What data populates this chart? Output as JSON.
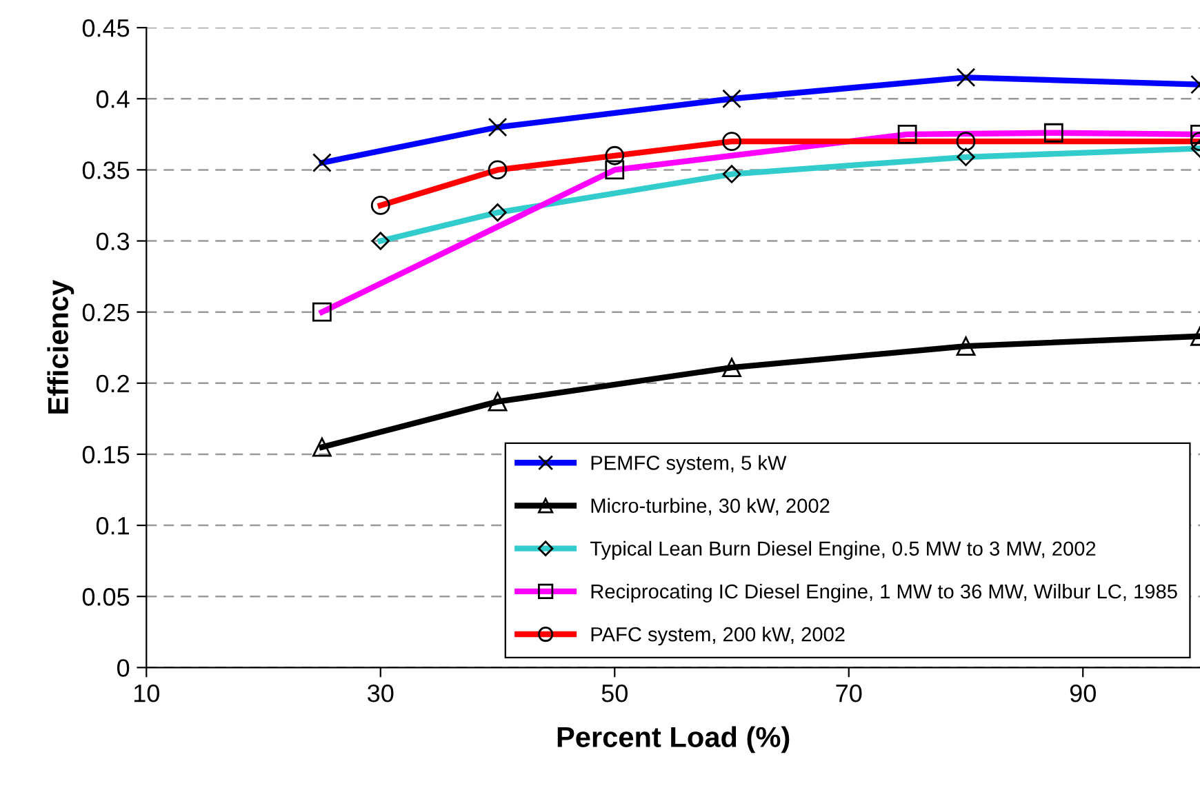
{
  "chart_data": {
    "type": "line",
    "xlabel": "Percent Load (%)",
    "ylabel": "Efficiency",
    "xlim": [
      10,
      100
    ],
    "xticks": [
      10,
      30,
      50,
      70,
      90
    ],
    "ylim": [
      0,
      0.45
    ],
    "yticks": [
      0,
      0.05,
      0.1,
      0.15,
      0.2,
      0.25,
      0.3,
      0.35,
      0.4,
      0.45
    ],
    "grid": "y",
    "legend": "bottom right",
    "series": [
      {
        "name": "PEMFC system, 5 kW",
        "color": "#0000ff",
        "marker": "cross",
        "x": [
          25,
          40,
          60,
          80,
          100
        ],
        "values": [
          0.355,
          0.38,
          0.4,
          0.415,
          0.41
        ]
      },
      {
        "name": "Micro-turbine, 30 kW, 2002",
        "color": "#000000",
        "marker": "triangle",
        "x": [
          25,
          40,
          60,
          80,
          100
        ],
        "values": [
          0.155,
          0.187,
          0.211,
          0.226,
          0.233
        ]
      },
      {
        "name": "Typical Lean Burn Diesel Engine, 0.5 MW to 3 MW, 2002",
        "color": "#33cccc",
        "marker": "diamond",
        "x": [
          30,
          40,
          60,
          80,
          100
        ],
        "values": [
          0.3,
          0.32,
          0.347,
          0.359,
          0.365
        ]
      },
      {
        "name": "Reciprocating IC Diesel Engine, 1 MW to 36 MW, Wilbur LC, 1985",
        "color": "#ff00ff",
        "marker": "square",
        "x": [
          25,
          50,
          75,
          87.5,
          100
        ],
        "values": [
          0.25,
          0.35,
          0.375,
          0.376,
          0.375
        ]
      },
      {
        "name": "PAFC system, 200 kW, 2002",
        "color": "#ff0000",
        "marker": "circle",
        "x": [
          30,
          40,
          50,
          60,
          80,
          100
        ],
        "values": [
          0.325,
          0.35,
          0.36,
          0.37,
          0.37,
          0.37
        ]
      }
    ]
  }
}
